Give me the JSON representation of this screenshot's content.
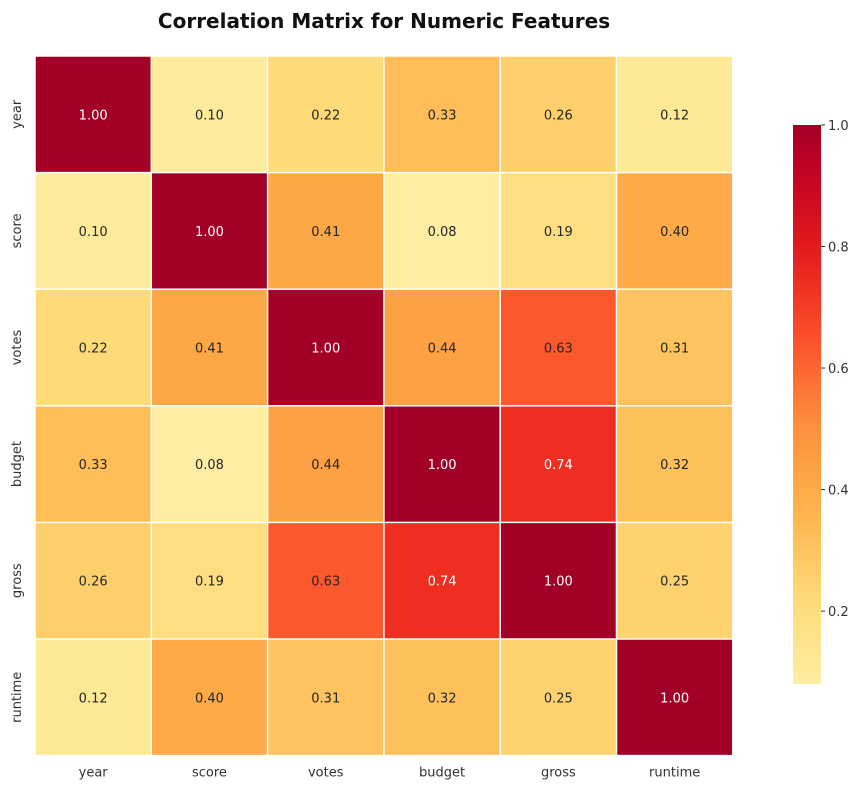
{
  "chart_data": {
    "type": "heatmap",
    "title": "Correlation Matrix for Numeric Features",
    "x_labels": [
      "year",
      "score",
      "votes",
      "budget",
      "gross",
      "runtime"
    ],
    "y_labels": [
      "year",
      "score",
      "votes",
      "budget",
      "gross",
      "runtime"
    ],
    "matrix": [
      [
        1.0,
        0.1,
        0.22,
        0.33,
        0.26,
        0.12
      ],
      [
        0.1,
        1.0,
        0.41,
        0.08,
        0.19,
        0.4
      ],
      [
        0.22,
        0.41,
        1.0,
        0.44,
        0.63,
        0.31
      ],
      [
        0.33,
        0.08,
        0.44,
        1.0,
        0.74,
        0.32
      ],
      [
        0.26,
        0.19,
        0.63,
        0.74,
        1.0,
        0.25
      ],
      [
        0.12,
        0.4,
        0.31,
        0.32,
        0.25,
        1.0
      ]
    ],
    "cell_labels": [
      [
        "1.00",
        "0.10",
        "0.22",
        "0.33",
        "0.26",
        "0.12"
      ],
      [
        "0.10",
        "1.00",
        "0.41",
        "0.08",
        "0.19",
        "0.40"
      ],
      [
        "0.22",
        "0.41",
        "1.00",
        "0.44",
        "0.63",
        "0.31"
      ],
      [
        "0.33",
        "0.08",
        "0.44",
        "1.00",
        "0.74",
        "0.32"
      ],
      [
        "0.26",
        "0.19",
        "0.63",
        "0.74",
        "1.00",
        "0.25"
      ],
      [
        "0.12",
        "0.40",
        "0.31",
        "0.32",
        "0.25",
        "1.00"
      ]
    ],
    "colormap": "YlOrRd",
    "color_range": [
      0.08,
      1.0
    ],
    "colorbar": {
      "ticks": [
        0.2,
        0.4,
        0.6,
        0.8,
        1.0
      ],
      "tick_labels": [
        "0.2",
        "0.4",
        "0.6",
        "0.8",
        "1.0"
      ],
      "position": "right"
    },
    "grid_color": "#ffffff",
    "colors": {
      "low": "#ffeda0",
      "high": "#a50026",
      "text_dark": "#262626",
      "text_light": "#ffffff"
    }
  }
}
